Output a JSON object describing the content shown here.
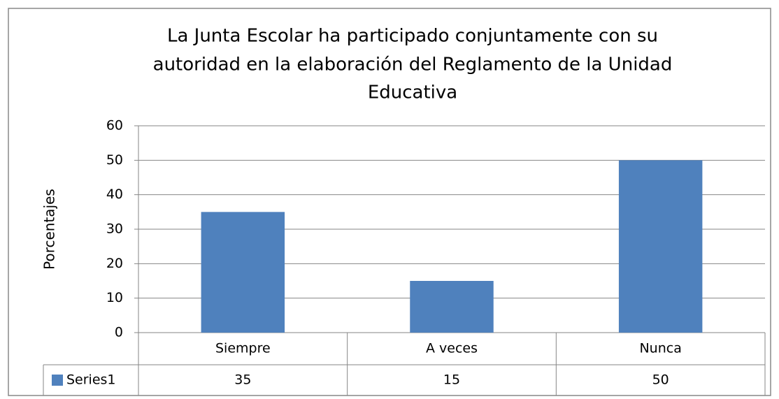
{
  "chart_data": {
    "type": "bar",
    "title": [
      "La Junta Escolar ha participado conjuntamente con su",
      "autoridad en la elaboración del Reglamento de la Unidad",
      "Educativa"
    ],
    "y_label": "Porcentajes",
    "categories": [
      "Siempre",
      "A veces",
      "Nunca"
    ],
    "series": [
      {
        "name": "Series1",
        "color": "#4f81bd",
        "values": [
          35,
          15,
          50
        ]
      }
    ],
    "ylim": [
      0,
      60
    ],
    "yticks": [
      0,
      10,
      20,
      30,
      40,
      50,
      60
    ],
    "grid": true,
    "data_table": true
  }
}
